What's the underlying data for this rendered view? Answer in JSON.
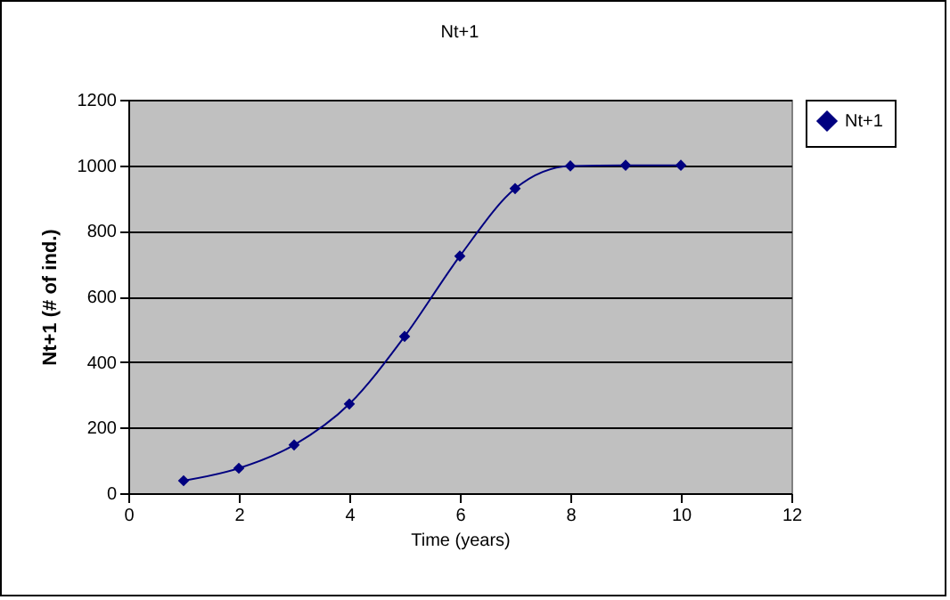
{
  "chart_data": {
    "type": "line",
    "title": "Nt+1",
    "xlabel": "Time (years)",
    "ylabel": "Nt+1 (# of ind.)",
    "x": [
      1,
      2,
      3,
      4,
      5,
      6,
      7,
      8,
      9,
      10
    ],
    "series": [
      {
        "name": "Nt+1",
        "color": "#000080",
        "values": [
          38,
          76,
          147,
          272,
          478,
          723,
          929,
          998,
          1000,
          1000
        ]
      }
    ],
    "xlim": [
      0,
      12
    ],
    "xticks": [
      0,
      2,
      4,
      6,
      8,
      10,
      12
    ],
    "ylim": [
      0,
      1200
    ],
    "yticks": [
      0,
      200,
      400,
      600,
      800,
      1000,
      1200
    ],
    "grid": "y",
    "legend": "right",
    "marker": "diamond",
    "line_style": "solid"
  }
}
